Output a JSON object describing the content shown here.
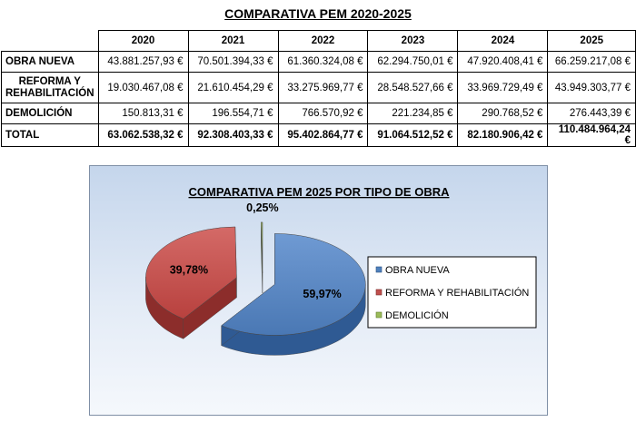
{
  "table": {
    "title": "COMPARATIVA PEM 2020-2025",
    "years": [
      "2020",
      "2021",
      "2022",
      "2023",
      "2024",
      "2025"
    ],
    "rows": [
      {
        "label": "OBRA NUEVA",
        "values": [
          "43.881.257,93 €",
          "70.501.394,33 €",
          "61.360.324,08 €",
          "62.294.750,01 €",
          "47.920.408,41 €",
          "66.259.217,08 €"
        ]
      },
      {
        "label": "REFORMA Y REHABILITACIÓN",
        "label_line1": "REFORMA Y",
        "label_line2": "REHABILITACIÓN",
        "values": [
          "19.030.467,08 €",
          "21.610.454,29 €",
          "33.275.969,77 €",
          "28.548.527,66 €",
          "33.969.729,49 €",
          "43.949.303,77 €"
        ]
      },
      {
        "label": "DEMOLICIÓN",
        "values": [
          "150.813,31 €",
          "196.554,71 €",
          "766.570,92 €",
          "221.234,85 €",
          "290.768,52 €",
          "276.443,39 €"
        ]
      },
      {
        "label": "TOTAL",
        "values": [
          "63.062.538,32 €",
          "92.308.403,33 €",
          "95.402.864,77 €",
          "91.064.512,52 €",
          "82.180.906,42 €",
          "110.484.964,24 €"
        ]
      }
    ]
  },
  "chart_data": {
    "type": "pie",
    "title": "COMPARATIVA PEM 2025 POR TIPO DE OBRA",
    "slices": [
      {
        "name": "OBRA NUEVA",
        "value": 59.97,
        "label": "59,97%",
        "color": "#4f81bd"
      },
      {
        "name": "REFORMA Y REHABILITACIÓN",
        "value": 39.78,
        "label": "39,78%",
        "color": "#c0504d"
      },
      {
        "name": "DEMOLICIÓN",
        "value": 0.25,
        "label": "0,25%",
        "color": "#9bbb59"
      }
    ],
    "legend": "right",
    "three_d": true,
    "exploded": true
  }
}
